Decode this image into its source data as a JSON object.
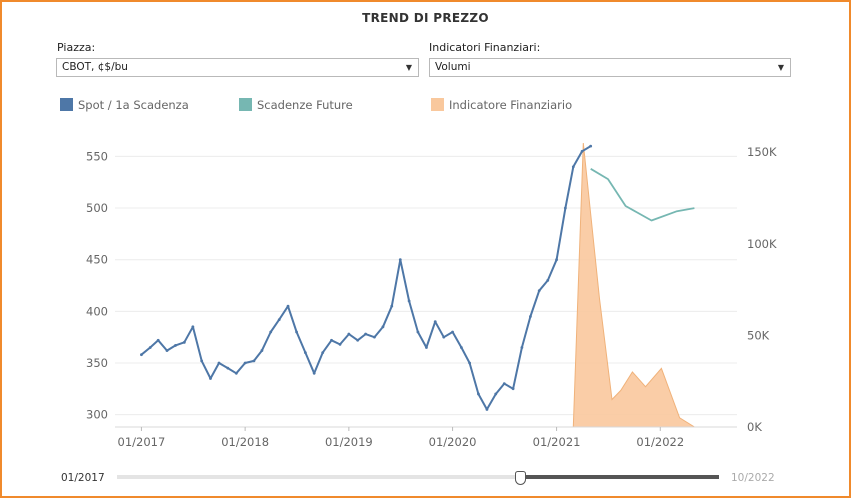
{
  "title": "TREND DI PREZZO",
  "filters": {
    "piazza": {
      "label": "Piazza:",
      "value": "CBOT, ¢$/bu"
    },
    "indicatori": {
      "label": "Indicatori Finanziari:",
      "value": "Volumi"
    }
  },
  "legend": [
    {
      "label": "Spot / 1a Scadenza",
      "color": "#4e77a7"
    },
    {
      "label": "Scadenze Future",
      "color": "#76b7b2"
    },
    {
      "label": "Indicatore Finanziario",
      "color": "#f9c89d"
    }
  ],
  "chart_data": {
    "type": "line",
    "left_axis": {
      "ticks": [
        300,
        350,
        400,
        450,
        500,
        550
      ],
      "labels": [
        "300",
        "350",
        "400",
        "450",
        "500",
        "550"
      ],
      "range": [
        288,
        563
      ]
    },
    "right_axis": {
      "ticks": [
        0,
        50000,
        100000,
        150000
      ],
      "labels": [
        "0K",
        "50K",
        "100K",
        "150K"
      ],
      "range": [
        0,
        155000
      ]
    },
    "x_range": [
      "2016-09-30",
      "2022-09-28"
    ],
    "x_ticks": [
      {
        "date": "2017-01-01",
        "label": "01/2017"
      },
      {
        "date": "2018-01-01",
        "label": "01/2018"
      },
      {
        "date": "2019-01-01",
        "label": "01/2019"
      },
      {
        "date": "2020-01-01",
        "label": "01/2020"
      },
      {
        "date": "2021-01-01",
        "label": "01/2021"
      },
      {
        "date": "2022-01-01",
        "label": "01/2022"
      }
    ],
    "grid": true,
    "series": [
      {
        "name": "Spot / 1a Scadenza",
        "color": "#4e77a7",
        "axis": "left",
        "x": [
          "2017-01-01",
          "2017-02-01",
          "2017-03-01",
          "2017-04-01",
          "2017-05-01",
          "2017-06-01",
          "2017-07-01",
          "2017-08-01",
          "2017-09-01",
          "2017-10-01",
          "2017-11-01",
          "2017-12-01",
          "2018-01-01",
          "2018-02-01",
          "2018-03-01",
          "2018-04-01",
          "2018-05-01",
          "2018-06-01",
          "2018-07-01",
          "2018-08-01",
          "2018-09-01",
          "2018-10-01",
          "2018-11-01",
          "2018-12-01",
          "2019-01-01",
          "2019-02-01",
          "2019-03-01",
          "2019-04-01",
          "2019-05-01",
          "2019-06-01",
          "2019-07-01",
          "2019-08-01",
          "2019-09-01",
          "2019-10-01",
          "2019-11-01",
          "2019-12-01",
          "2020-01-01",
          "2020-02-01",
          "2020-03-01",
          "2020-04-01",
          "2020-05-01",
          "2020-06-01",
          "2020-07-01",
          "2020-08-01",
          "2020-09-01",
          "2020-10-01",
          "2020-11-01",
          "2020-12-01",
          "2021-01-01",
          "2021-02-01",
          "2021-03-01",
          "2021-04-01",
          "2021-05-01"
        ],
        "values": [
          358,
          365,
          372,
          362,
          367,
          370,
          385,
          352,
          335,
          350,
          345,
          340,
          350,
          352,
          362,
          380,
          392,
          405,
          380,
          360,
          340,
          360,
          372,
          368,
          378,
          372,
          378,
          375,
          385,
          405,
          450,
          410,
          380,
          365,
          390,
          375,
          380,
          365,
          350,
          320,
          305,
          320,
          330,
          325,
          365,
          395,
          420,
          430,
          450,
          500,
          540,
          555,
          560
        ]
      },
      {
        "name": "Scadenze Future",
        "color": "#76b7b2",
        "axis": "left",
        "x": [
          "2021-05-01",
          "2021-07-01",
          "2021-09-01",
          "2021-12-01",
          "2022-03-01",
          "2022-05-01"
        ],
        "values": [
          538,
          528,
          502,
          488,
          497,
          500
        ]
      },
      {
        "name": "Indicatore Finanziario",
        "color": "#f9c89d",
        "axis": "right",
        "x": [
          "2021-03-01",
          "2021-04-05",
          "2021-06-01",
          "2021-07-15",
          "2021-08-15",
          "2021-09-25",
          "2021-11-10",
          "2022-01-05",
          "2022-03-10",
          "2022-05-01"
        ],
        "values": [
          0,
          155000,
          70000,
          15000,
          20000,
          30000,
          22000,
          32000,
          5000,
          0
        ]
      }
    ]
  },
  "slider": {
    "start_label": "01/2017",
    "end_label": "10/2022",
    "position": 0.67
  }
}
